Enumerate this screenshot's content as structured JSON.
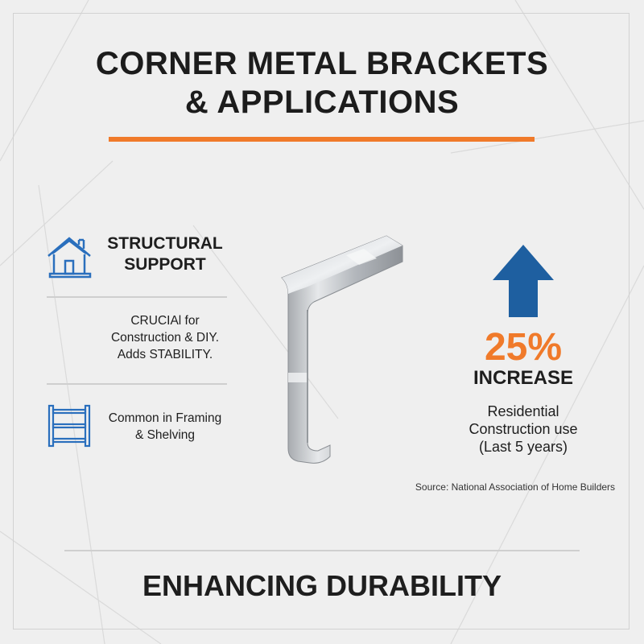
{
  "title": {
    "line1": "CORNER METAL BRACKETS",
    "line2": "& APPLICATIONS"
  },
  "colors": {
    "accent": "#f07a2a",
    "icon_blue": "#2a6fbd",
    "arrow_blue": "#1e5fa0",
    "text": "#1e1e1e"
  },
  "left_panel": {
    "heading": {
      "icon": "house-icon",
      "line1": "STRUCTURAL",
      "line2": "SUPPORT"
    },
    "description": {
      "line1": "CRUCIAl for",
      "line2": "Construction & DIY.",
      "line3": "Adds STABILITY."
    },
    "usage": {
      "icon": "shelf-icon",
      "line1": "Common in Framing",
      "line2": "& Shelving"
    }
  },
  "center": {
    "image": "corner-metal-bracket"
  },
  "stat": {
    "icon": "arrow-up-icon",
    "value": "25%",
    "label": "INCREASE",
    "line1": "Residential",
    "line2": "Construction use",
    "line3": "(Last 5 years)",
    "source": "Source: National Association of Home Builders"
  },
  "footer": {
    "text": "ENHANCING DURABILITY"
  }
}
